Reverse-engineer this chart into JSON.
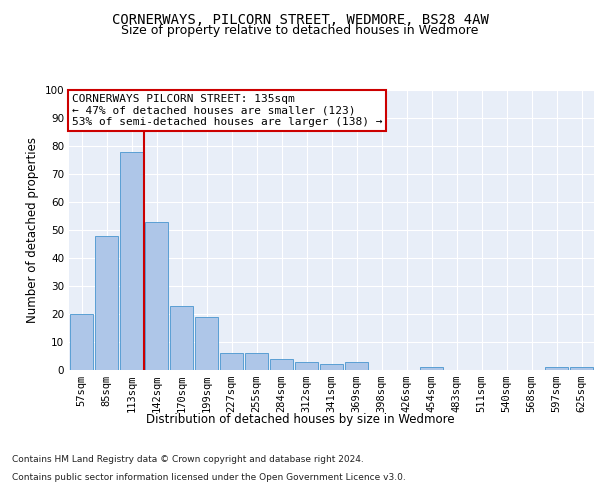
{
  "title1": "CORNERWAYS, PILCORN STREET, WEDMORE, BS28 4AW",
  "title2": "Size of property relative to detached houses in Wedmore",
  "xlabel": "Distribution of detached houses by size in Wedmore",
  "ylabel": "Number of detached properties",
  "categories": [
    "57sqm",
    "85sqm",
    "113sqm",
    "142sqm",
    "170sqm",
    "199sqm",
    "227sqm",
    "255sqm",
    "284sqm",
    "312sqm",
    "341sqm",
    "369sqm",
    "398sqm",
    "426sqm",
    "454sqm",
    "483sqm",
    "511sqm",
    "540sqm",
    "568sqm",
    "597sqm",
    "625sqm"
  ],
  "values": [
    20,
    48,
    78,
    53,
    23,
    19,
    6,
    6,
    4,
    3,
    2,
    3,
    0,
    0,
    1,
    0,
    0,
    0,
    0,
    1,
    1
  ],
  "bar_color": "#aec6e8",
  "bar_edge_color": "#5a9fd4",
  "vline_color": "#cc0000",
  "annotation_text": "CORNERWAYS PILCORN STREET: 135sqm\n← 47% of detached houses are smaller (123)\n53% of semi-detached houses are larger (138) →",
  "annotation_box_edge": "#cc0000",
  "ylim": [
    0,
    100
  ],
  "yticks": [
    0,
    10,
    20,
    30,
    40,
    50,
    60,
    70,
    80,
    90,
    100
  ],
  "footnote1": "Contains HM Land Registry data © Crown copyright and database right 2024.",
  "footnote2": "Contains public sector information licensed under the Open Government Licence v3.0.",
  "background_color": "#e8eef8",
  "grid_color": "#ffffff",
  "title1_fontsize": 10,
  "title2_fontsize": 9,
  "axis_fontsize": 8.5,
  "tick_fontsize": 7.5,
  "annotation_fontsize": 8,
  "footnote_fontsize": 6.5
}
